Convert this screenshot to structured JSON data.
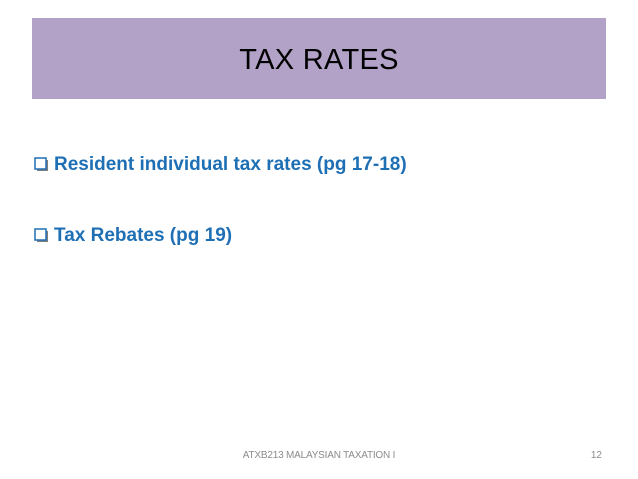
{
  "slide": {
    "title": "TAX RATES",
    "bullets": [
      {
        "icon": "hollow-square-bullet-icon",
        "text": "Resident individual tax rates (pg 17-18)"
      },
      {
        "icon": "hollow-square-bullet-icon",
        "text": "Tax Rebates (pg 19)"
      }
    ],
    "footer": {
      "course": "ATXB213 MALAYSIAN TAXATION I",
      "page_number": "12"
    }
  },
  "colors": {
    "title_bar": "#b3a2c7",
    "bullet_text": "#1f6fb5",
    "footer_text": "#8c8c8c"
  }
}
